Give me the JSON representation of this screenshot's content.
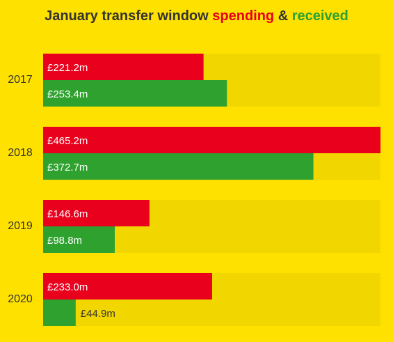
{
  "title": {
    "prefix": "January transfer window ",
    "spending": "spending",
    "amp": " & ",
    "received": "received"
  },
  "colors": {
    "background": "#ffe100",
    "track": "#f2d600",
    "spending": "#e8001c",
    "received": "#2ea12e",
    "title_text": "#333333",
    "label_inside": "#ffffff",
    "label_outside": "#333333"
  },
  "chart_data": {
    "type": "bar",
    "orientation": "horizontal",
    "title": "January transfer window spending & received",
    "categories": [
      "2017",
      "2018",
      "2019",
      "2020"
    ],
    "series": [
      {
        "name": "spending",
        "values": [
          221.2,
          465.2,
          146.6,
          233.0
        ],
        "labels": [
          "£221.2m",
          "£465.2m",
          "£146.6m",
          "£233.0m"
        ]
      },
      {
        "name": "received",
        "values": [
          253.4,
          372.7,
          98.8,
          44.9
        ],
        "labels": [
          "£253.4m",
          "£372.7m",
          "£98.8m",
          "£44.9m"
        ]
      }
    ],
    "xlim": [
      0,
      465.2
    ],
    "grid": false,
    "legend": "in title"
  }
}
